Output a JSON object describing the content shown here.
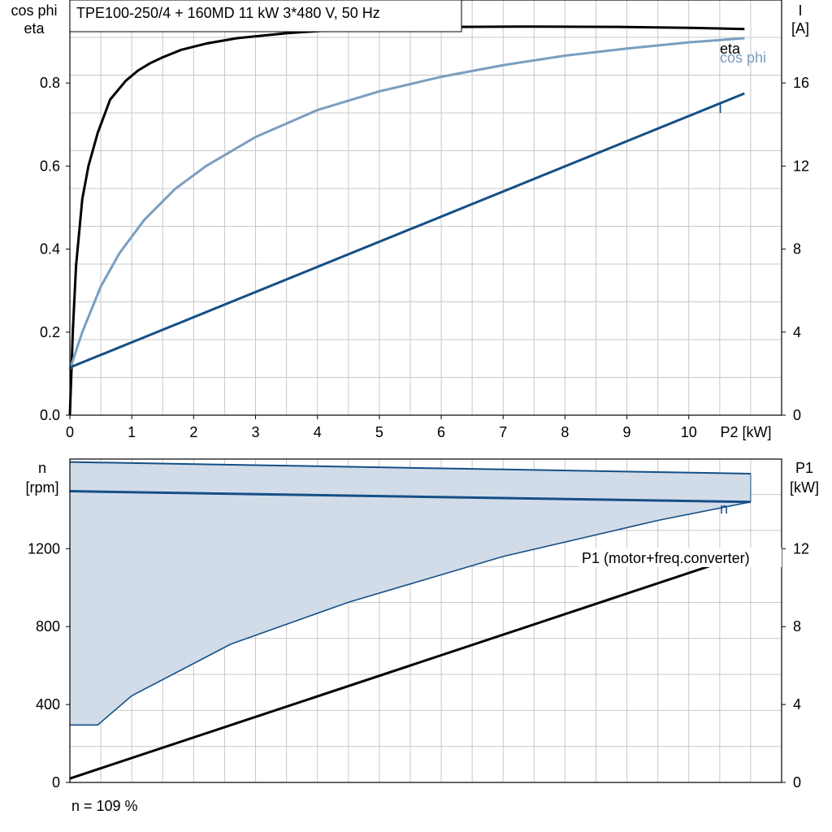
{
  "chart_data": [
    {
      "type": "line",
      "title": "TPE100-250/4 + 160MD   11 kW   3*480 V, 50 Hz",
      "xlabel": "P2 [kW]",
      "xlim": [
        0,
        11.5
      ],
      "xticks": [
        0,
        1,
        2,
        3,
        4,
        5,
        6,
        7,
        8,
        9,
        10
      ],
      "left_axis": {
        "label_lines": [
          "cos phi",
          "eta"
        ],
        "ylim": [
          0,
          1.0
        ],
        "ticks": [
          "0.0",
          "0.2",
          "0.4",
          "0.6",
          "0.8"
        ],
        "tick_values": [
          0,
          0.2,
          0.4,
          0.6,
          0.8
        ]
      },
      "right_axis": {
        "label_lines": [
          "I",
          "[A]"
        ],
        "ylim": [
          0,
          20
        ],
        "ticks": [
          "0",
          "4",
          "8",
          "12",
          "16"
        ],
        "tick_values": [
          0,
          4,
          8,
          12,
          16
        ]
      },
      "grid": true,
      "series": [
        {
          "name": "eta",
          "axis": "left",
          "color": "#000000",
          "x": [
            0,
            0.05,
            0.1,
            0.2,
            0.3,
            0.45,
            0.65,
            0.9,
            1.1,
            1.3,
            1.5,
            1.8,
            2.2,
            2.7,
            3.5,
            4.5,
            6.0,
            7.5,
            9.0,
            10.0,
            10.9
          ],
          "y": [
            0.0,
            0.21,
            0.36,
            0.52,
            0.6,
            0.68,
            0.76,
            0.805,
            0.83,
            0.848,
            0.862,
            0.88,
            0.895,
            0.908,
            0.92,
            0.93,
            0.935,
            0.936,
            0.935,
            0.933,
            0.93
          ]
        },
        {
          "name": "cos phi",
          "axis": "left",
          "color": "#7a9ec0",
          "x": [
            0,
            0.2,
            0.5,
            0.8,
            1.2,
            1.7,
            2.2,
            3.0,
            4.0,
            5.0,
            6.0,
            7.0,
            8.0,
            9.0,
            10.0,
            10.9
          ],
          "y": [
            0.11,
            0.2,
            0.31,
            0.39,
            0.47,
            0.545,
            0.6,
            0.67,
            0.735,
            0.78,
            0.815,
            0.843,
            0.866,
            0.883,
            0.898,
            0.908
          ]
        },
        {
          "name": "I",
          "axis": "right",
          "color": "#154f86",
          "x": [
            0,
            10.9
          ],
          "y": [
            2.3,
            15.5
          ]
        }
      ]
    },
    {
      "type": "line",
      "xlim": [
        0,
        11.5
      ],
      "left_axis": {
        "label_lines": [
          "n",
          "[rpm]"
        ],
        "ylim": [
          0,
          1660
        ],
        "ticks": [
          "0",
          "400",
          "800",
          "1200"
        ],
        "tick_values": [
          0,
          400,
          800,
          1200
        ]
      },
      "right_axis": {
        "label_lines": [
          "P1",
          "[kW]"
        ],
        "ylim": [
          0,
          16.6
        ],
        "ticks": [
          "0",
          "4",
          "8",
          "12"
        ],
        "tick_values": [
          0,
          4,
          8,
          12
        ]
      },
      "grid": true,
      "operating_range": {
        "upper_x": [
          0,
          11.0
        ],
        "upper_y": [
          1645,
          1585
        ],
        "lower_x": [
          0,
          0.45,
          1.0,
          2.6,
          4.5,
          7.0,
          9.5,
          11.0
        ],
        "lower_y": [
          295,
          295,
          445,
          710,
          925,
          1160,
          1345,
          1440
        ],
        "fill_color": "#d1dce8",
        "edge_color": "#154f86"
      },
      "series": [
        {
          "name": "n",
          "axis": "left",
          "color": "#154f86",
          "x": [
            0,
            11.0
          ],
          "y": [
            1495,
            1440
          ]
        },
        {
          "name": "P1 (motor+freq.converter)",
          "axis": "right",
          "color": "#000000",
          "x": [
            0,
            10.9
          ],
          "y": [
            0.2,
            11.7
          ]
        }
      ],
      "footnote": "n = 109 %"
    }
  ]
}
